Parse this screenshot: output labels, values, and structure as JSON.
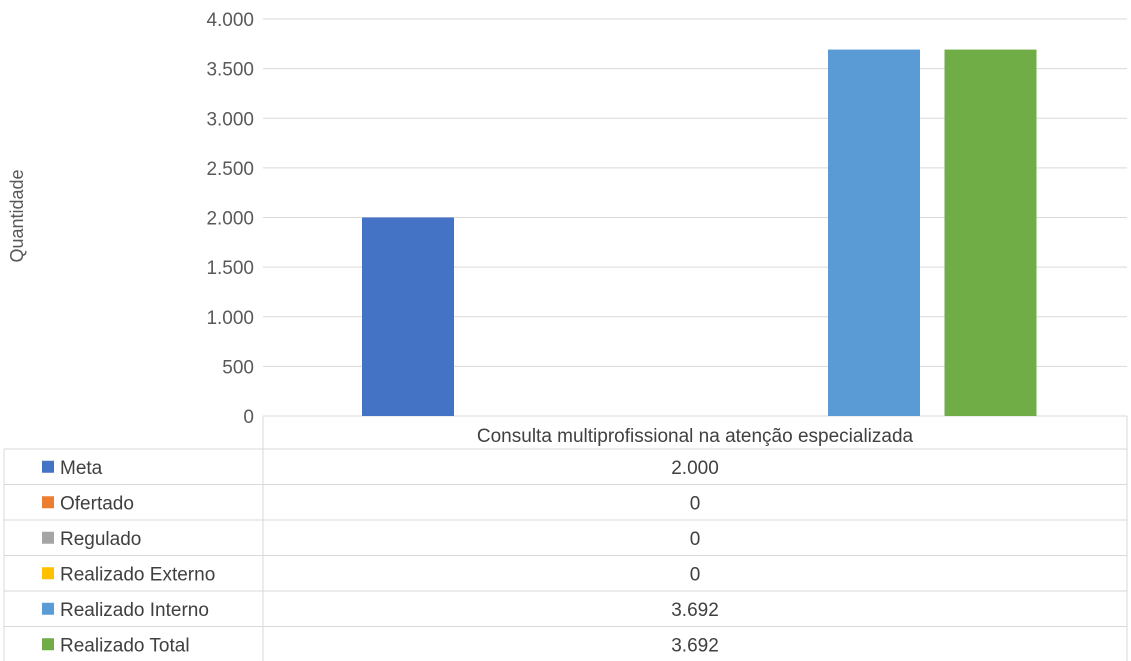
{
  "chart_data": {
    "type": "bar",
    "title": "",
    "xlabel": "",
    "ylabel": "Quantidade",
    "ylim": [
      0,
      4000
    ],
    "yticks": [
      0,
      500,
      1000,
      1500,
      2000,
      2500,
      3000,
      3500,
      4000
    ],
    "ytick_labels": [
      "0",
      "500",
      "1.000",
      "1.500",
      "2.000",
      "2.500",
      "3.000",
      "3.500",
      "4.000"
    ],
    "categories": [
      "Consulta multiprofissional na atenção especializada"
    ],
    "grid": true,
    "legend_placement": "data-table",
    "series": [
      {
        "name": "Meta",
        "values": [
          2000
        ],
        "display": [
          "2.000"
        ],
        "color": "#4472c4"
      },
      {
        "name": "Ofertado",
        "values": [
          0
        ],
        "display": [
          "0"
        ],
        "color": "#ed7d31"
      },
      {
        "name": "Regulado",
        "values": [
          0
        ],
        "display": [
          "0"
        ],
        "color": "#a5a5a5"
      },
      {
        "name": "Realizado Externo",
        "values": [
          0
        ],
        "display": [
          "0"
        ],
        "color": "#ffc000"
      },
      {
        "name": "Realizado Interno",
        "values": [
          3692
        ],
        "display": [
          "3.692"
        ],
        "color": "#5b9bd5"
      },
      {
        "name": "Realizado Total",
        "values": [
          3692
        ],
        "display": [
          "3.692"
        ],
        "color": "#70ad47"
      }
    ]
  }
}
